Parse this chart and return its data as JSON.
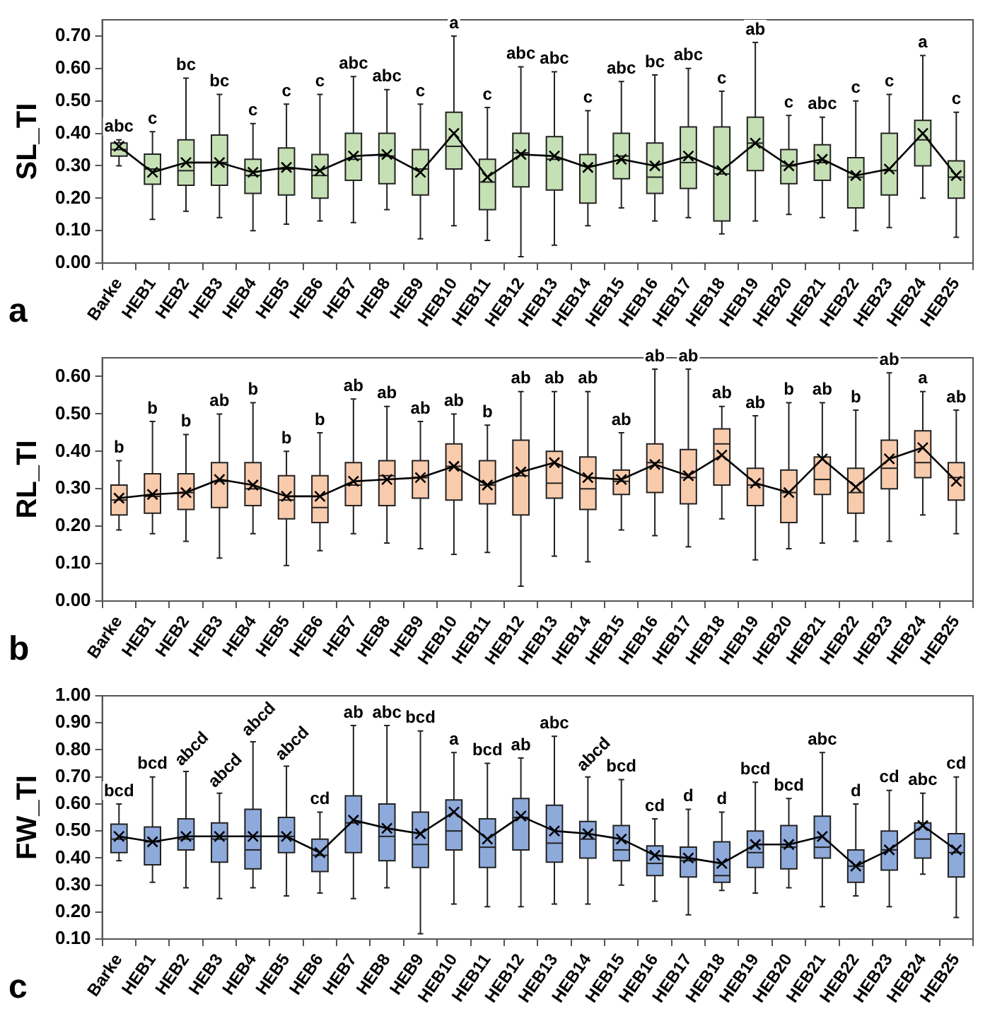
{
  "chart_data": [
    {
      "type": "box",
      "ylabel": "SL_TI",
      "categories": [
        "Barke",
        "HEB1",
        "HEB2",
        "HEB3",
        "HEB4",
        "HEB5",
        "HEB6",
        "HEB7",
        "HEB8",
        "HEB9",
        "HEB10",
        "HEB11",
        "HEB12",
        "HEB13",
        "HEB14",
        "HEB15",
        "HEB16",
        "HEB17",
        "HEB18",
        "HEB19",
        "HEB20",
        "HEB21",
        "HEB22",
        "HEB23",
        "HEB24",
        "HEB25"
      ],
      "ylim": [
        0,
        0.75
      ],
      "yticks": [
        {
          "value": 0,
          "label": "0.00"
        },
        {
          "value": 0.1,
          "label": "0.10"
        },
        {
          "value": 0.2,
          "label": "0.20"
        },
        {
          "value": 0.3,
          "label": "0.30"
        },
        {
          "value": 0.4,
          "label": "0.40"
        },
        {
          "value": 0.5,
          "label": "0.50"
        },
        {
          "value": 0.6,
          "label": "0.60"
        },
        {
          "value": 0.7,
          "label": "0.70"
        }
      ],
      "annotations": [
        "a"
      ],
      "series": [
        {
          "type": "box",
          "color": "#c5e0b4",
          "value_labels": [
            "abc",
            "c",
            "bc",
            "bc",
            "c",
            "c",
            "c",
            "abc",
            "abc",
            "c",
            "a",
            "c",
            "abc",
            "abc",
            "c",
            "abc",
            "bc",
            "abc",
            "c",
            "ab",
            "c",
            "abc",
            "c",
            "c",
            "a",
            "c"
          ],
          "boxes": [
            {
              "low": 0.3,
              "q1": 0.33,
              "median": 0.35,
              "q3": 0.37,
              "high": 0.38,
              "mean": 0.36
            },
            {
              "low": 0.135,
              "q1": 0.243,
              "median": 0.29,
              "q3": 0.336,
              "high": 0.405,
              "mean": 0.28
            },
            {
              "low": 0.16,
              "q1": 0.24,
              "median": 0.285,
              "q3": 0.38,
              "high": 0.57,
              "mean": 0.31
            },
            {
              "low": 0.14,
              "q1": 0.24,
              "median": 0.31,
              "q3": 0.395,
              "high": 0.52,
              "mean": 0.31
            },
            {
              "low": 0.1,
              "q1": 0.215,
              "median": 0.27,
              "q3": 0.32,
              "high": 0.43,
              "mean": 0.28
            },
            {
              "low": 0.12,
              "q1": 0.21,
              "median": 0.29,
              "q3": 0.355,
              "high": 0.49,
              "mean": 0.295
            },
            {
              "low": 0.13,
              "q1": 0.2,
              "median": 0.27,
              "q3": 0.335,
              "high": 0.52,
              "mean": 0.285
            },
            {
              "low": 0.125,
              "q1": 0.255,
              "median": 0.32,
              "q3": 0.4,
              "high": 0.575,
              "mean": 0.33
            },
            {
              "low": 0.165,
              "q1": 0.245,
              "median": 0.33,
              "q3": 0.4,
              "high": 0.535,
              "mean": 0.335
            },
            {
              "low": 0.075,
              "q1": 0.21,
              "median": 0.29,
              "q3": 0.35,
              "high": 0.49,
              "mean": 0.28
            },
            {
              "low": 0.115,
              "q1": 0.29,
              "median": 0.36,
              "q3": 0.465,
              "high": 0.7,
              "mean": 0.4
            },
            {
              "low": 0.07,
              "q1": 0.165,
              "median": 0.25,
              "q3": 0.32,
              "high": 0.48,
              "mean": 0.265
            },
            {
              "low": 0.02,
              "q1": 0.235,
              "median": 0.34,
              "q3": 0.4,
              "high": 0.605,
              "mean": 0.335
            },
            {
              "low": 0.055,
              "q1": 0.225,
              "median": 0.32,
              "q3": 0.39,
              "high": 0.59,
              "mean": 0.33
            },
            {
              "low": 0.115,
              "q1": 0.185,
              "median": 0.3,
              "q3": 0.335,
              "high": 0.47,
              "mean": 0.295
            },
            {
              "low": 0.17,
              "q1": 0.26,
              "median": 0.33,
              "q3": 0.4,
              "high": 0.56,
              "mean": 0.32
            },
            {
              "low": 0.13,
              "q1": 0.215,
              "median": 0.265,
              "q3": 0.37,
              "high": 0.58,
              "mean": 0.3
            },
            {
              "low": 0.14,
              "q1": 0.23,
              "median": 0.31,
              "q3": 0.42,
              "high": 0.6,
              "mean": 0.33
            },
            {
              "low": 0.09,
              "q1": 0.13,
              "median": 0.275,
              "q3": 0.42,
              "high": 0.53,
              "mean": 0.285
            },
            {
              "low": 0.13,
              "q1": 0.285,
              "median": 0.37,
              "q3": 0.45,
              "high": 0.68,
              "mean": 0.37
            },
            {
              "low": 0.15,
              "q1": 0.245,
              "median": 0.3,
              "q3": 0.35,
              "high": 0.455,
              "mean": 0.3
            },
            {
              "low": 0.14,
              "q1": 0.255,
              "median": 0.31,
              "q3": 0.365,
              "high": 0.45,
              "mean": 0.32
            },
            {
              "low": 0.1,
              "q1": 0.17,
              "median": 0.265,
              "q3": 0.325,
              "high": 0.5,
              "mean": 0.27
            },
            {
              "low": 0.11,
              "q1": 0.21,
              "median": 0.285,
              "q3": 0.4,
              "high": 0.52,
              "mean": 0.29
            },
            {
              "low": 0.2,
              "q1": 0.3,
              "median": 0.38,
              "q3": 0.44,
              "high": 0.64,
              "mean": 0.4
            },
            {
              "low": 0.08,
              "q1": 0.2,
              "median": 0.265,
              "q3": 0.315,
              "high": 0.465,
              "mean": 0.27
            }
          ]
        },
        {
          "type": "line",
          "color": "#000000",
          "values": [
            0.36,
            0.28,
            0.31,
            0.31,
            0.28,
            0.295,
            0.285,
            0.33,
            0.335,
            0.28,
            0.4,
            0.265,
            0.335,
            0.33,
            0.295,
            0.32,
            0.3,
            0.33,
            0.285,
            0.37,
            0.3,
            0.32,
            0.27,
            0.29,
            0.4,
            0.27
          ]
        }
      ]
    },
    {
      "type": "box",
      "ylabel": "RL_TI",
      "categories": [
        "Barke",
        "HEB1",
        "HEB2",
        "HEB3",
        "HEB4",
        "HEB5",
        "HEB6",
        "HEB7",
        "HEB8",
        "HEB9",
        "HEB10",
        "HEB11",
        "HEB12",
        "HEB13",
        "HEB14",
        "HEB15",
        "HEB16",
        "HEB17",
        "HEB18",
        "HEB19",
        "HEB20",
        "HEB21",
        "HEB22",
        "HEB23",
        "HEB24",
        "HEB25"
      ],
      "ylim": [
        0,
        0.65
      ],
      "yticks": [
        {
          "value": 0,
          "label": "0.00"
        },
        {
          "value": 0.1,
          "label": "0.10"
        },
        {
          "value": 0.2,
          "label": "0.20"
        },
        {
          "value": 0.3,
          "label": "0.30"
        },
        {
          "value": 0.4,
          "label": "0.40"
        },
        {
          "value": 0.5,
          "label": "0.50"
        },
        {
          "value": 0.6,
          "label": "0.60"
        }
      ],
      "annotations": [
        "b"
      ],
      "series": [
        {
          "type": "box",
          "color": "#f8cbad",
          "value_labels": [
            "b",
            "b",
            "b",
            "ab",
            "b",
            "b",
            "b",
            "ab",
            "ab",
            "ab",
            "ab",
            "b",
            "ab",
            "ab",
            "ab",
            "ab",
            "ab",
            "ab",
            "ab",
            "ab",
            "b",
            "ab",
            "b",
            "ab",
            "a",
            "ab"
          ],
          "boxes": [
            {
              "low": 0.19,
              "q1": 0.23,
              "median": 0.27,
              "q3": 0.31,
              "high": 0.375,
              "mean": 0.275
            },
            {
              "low": 0.18,
              "q1": 0.235,
              "median": 0.28,
              "q3": 0.34,
              "high": 0.48,
              "mean": 0.285
            },
            {
              "low": 0.16,
              "q1": 0.245,
              "median": 0.29,
              "q3": 0.34,
              "high": 0.445,
              "mean": 0.29
            },
            {
              "low": 0.115,
              "q1": 0.25,
              "median": 0.32,
              "q3": 0.37,
              "high": 0.5,
              "mean": 0.325
            },
            {
              "low": 0.18,
              "q1": 0.255,
              "median": 0.3,
              "q3": 0.37,
              "high": 0.53,
              "mean": 0.31
            },
            {
              "low": 0.095,
              "q1": 0.22,
              "median": 0.27,
              "q3": 0.335,
              "high": 0.4,
              "mean": 0.28
            },
            {
              "low": 0.135,
              "q1": 0.21,
              "median": 0.25,
              "q3": 0.335,
              "high": 0.45,
              "mean": 0.28
            },
            {
              "low": 0.18,
              "q1": 0.255,
              "median": 0.31,
              "q3": 0.37,
              "high": 0.54,
              "mean": 0.32
            },
            {
              "low": 0.155,
              "q1": 0.255,
              "median": 0.335,
              "q3": 0.375,
              "high": 0.52,
              "mean": 0.325
            },
            {
              "low": 0.14,
              "q1": 0.275,
              "median": 0.33,
              "q3": 0.375,
              "high": 0.48,
              "mean": 0.33
            },
            {
              "low": 0.125,
              "q1": 0.27,
              "median": 0.36,
              "q3": 0.42,
              "high": 0.5,
              "mean": 0.36
            },
            {
              "low": 0.13,
              "q1": 0.26,
              "median": 0.31,
              "q3": 0.375,
              "high": 0.47,
              "mean": 0.31
            },
            {
              "low": 0.04,
              "q1": 0.23,
              "median": 0.335,
              "q3": 0.43,
              "high": 0.56,
              "mean": 0.345
            },
            {
              "low": 0.12,
              "q1": 0.275,
              "median": 0.315,
              "q3": 0.4,
              "high": 0.56,
              "mean": 0.37
            },
            {
              "low": 0.105,
              "q1": 0.245,
              "median": 0.3,
              "q3": 0.385,
              "high": 0.56,
              "mean": 0.33
            },
            {
              "low": 0.19,
              "q1": 0.285,
              "median": 0.32,
              "q3": 0.35,
              "high": 0.45,
              "mean": 0.325
            },
            {
              "low": 0.175,
              "q1": 0.29,
              "median": 0.37,
              "q3": 0.42,
              "high": 0.62,
              "mean": 0.365
            },
            {
              "low": 0.145,
              "q1": 0.26,
              "median": 0.33,
              "q3": 0.405,
              "high": 0.62,
              "mean": 0.335
            },
            {
              "low": 0.22,
              "q1": 0.31,
              "median": 0.42,
              "q3": 0.46,
              "high": 0.52,
              "mean": 0.39
            },
            {
              "low": 0.11,
              "q1": 0.255,
              "median": 0.31,
              "q3": 0.355,
              "high": 0.495,
              "mean": 0.315
            },
            {
              "low": 0.14,
              "q1": 0.21,
              "median": 0.29,
              "q3": 0.35,
              "high": 0.53,
              "mean": 0.29
            },
            {
              "low": 0.155,
              "q1": 0.285,
              "median": 0.325,
              "q3": 0.385,
              "high": 0.53,
              "mean": 0.38
            },
            {
              "low": 0.16,
              "q1": 0.235,
              "median": 0.29,
              "q3": 0.355,
              "high": 0.51,
              "mean": 0.305
            },
            {
              "low": 0.16,
              "q1": 0.3,
              "median": 0.355,
              "q3": 0.43,
              "high": 0.61,
              "mean": 0.38
            },
            {
              "low": 0.23,
              "q1": 0.33,
              "median": 0.37,
              "q3": 0.455,
              "high": 0.56,
              "mean": 0.41
            },
            {
              "low": 0.18,
              "q1": 0.27,
              "median": 0.33,
              "q3": 0.37,
              "high": 0.51,
              "mean": 0.32
            }
          ]
        },
        {
          "type": "line",
          "color": "#000000",
          "values": [
            0.275,
            0.285,
            0.29,
            0.325,
            0.31,
            0.28,
            0.28,
            0.32,
            0.325,
            0.33,
            0.36,
            0.31,
            0.345,
            0.37,
            0.33,
            0.325,
            0.365,
            0.335,
            0.39,
            0.315,
            0.29,
            0.38,
            0.305,
            0.38,
            0.41,
            0.32
          ]
        }
      ]
    },
    {
      "type": "box",
      "ylabel": "FW_TI",
      "categories": [
        "Barke",
        "HEB1",
        "HEB2",
        "HEB3",
        "HEB4",
        "HEB5",
        "HEB6",
        "HEB7",
        "HEB8",
        "HEB9",
        "HEB10",
        "HEB11",
        "HEB12",
        "HEB13",
        "HEB14",
        "HEB15",
        "HEB16",
        "HEB17",
        "HEB18",
        "HEB19",
        "HEB20",
        "HEB21",
        "HEB22",
        "HEB23",
        "HEB24",
        "HEB25"
      ],
      "ylim": [
        0.1,
        1
      ],
      "yticks": [
        {
          "value": 0.1,
          "label": "0.10"
        },
        {
          "value": 0.2,
          "label": "0.20"
        },
        {
          "value": 0.3,
          "label": "0.30"
        },
        {
          "value": 0.4,
          "label": "0.40"
        },
        {
          "value": 0.5,
          "label": "0.50"
        },
        {
          "value": 0.6,
          "label": "0.60"
        },
        {
          "value": 0.7,
          "label": "0.70"
        },
        {
          "value": 0.8,
          "label": "0.80"
        },
        {
          "value": 0.9,
          "label": "0.90"
        },
        {
          "value": 1,
          "label": "1.00"
        }
      ],
      "annotations": [
        "c"
      ],
      "series": [
        {
          "type": "box",
          "color": "#8eaadb",
          "value_labels": [
            "bcd",
            "bcd",
            "abcd",
            "abcd",
            "abcd",
            "abcd",
            "cd",
            "ab",
            "abc",
            "bcd",
            "a",
            "bcd",
            "ab",
            "abc",
            "abcd",
            "bcd",
            "cd",
            "d",
            "d",
            "bcd",
            "bcd",
            "abc",
            "d",
            "cd",
            "abc",
            "cd"
          ],
          "boxes": [
            {
              "low": 0.39,
              "q1": 0.42,
              "median": 0.47,
              "q3": 0.525,
              "high": 0.6,
              "mean": 0.48
            },
            {
              "low": 0.31,
              "q1": 0.375,
              "median": 0.46,
              "q3": 0.515,
              "high": 0.7,
              "mean": 0.46
            },
            {
              "low": 0.29,
              "q1": 0.43,
              "median": 0.47,
              "q3": 0.545,
              "high": 0.72,
              "mean": 0.48
            },
            {
              "low": 0.25,
              "q1": 0.385,
              "median": 0.47,
              "q3": 0.53,
              "high": 0.64,
              "mean": 0.48
            },
            {
              "low": 0.29,
              "q1": 0.36,
              "median": 0.43,
              "q3": 0.58,
              "high": 0.83,
              "mean": 0.48
            },
            {
              "low": 0.26,
              "q1": 0.42,
              "median": 0.48,
              "q3": 0.55,
              "high": 0.74,
              "mean": 0.48
            },
            {
              "low": 0.27,
              "q1": 0.35,
              "median": 0.41,
              "q3": 0.47,
              "high": 0.57,
              "mean": 0.42
            },
            {
              "low": 0.25,
              "q1": 0.42,
              "median": 0.53,
              "q3": 0.63,
              "high": 0.89,
              "mean": 0.54
            },
            {
              "low": 0.29,
              "q1": 0.39,
              "median": 0.48,
              "q3": 0.6,
              "high": 0.89,
              "mean": 0.51
            },
            {
              "low": 0.12,
              "q1": 0.365,
              "median": 0.45,
              "q3": 0.57,
              "high": 0.87,
              "mean": 0.49
            },
            {
              "low": 0.23,
              "q1": 0.43,
              "median": 0.5,
              "q3": 0.615,
              "high": 0.79,
              "mean": 0.57
            },
            {
              "low": 0.22,
              "q1": 0.365,
              "median": 0.44,
              "q3": 0.545,
              "high": 0.75,
              "mean": 0.47
            },
            {
              "low": 0.22,
              "q1": 0.43,
              "median": 0.55,
              "q3": 0.62,
              "high": 0.77,
              "mean": 0.555
            },
            {
              "low": 0.23,
              "q1": 0.385,
              "median": 0.455,
              "q3": 0.595,
              "high": 0.85,
              "mean": 0.5
            },
            {
              "low": 0.23,
              "q1": 0.4,
              "median": 0.47,
              "q3": 0.535,
              "high": 0.7,
              "mean": 0.49
            },
            {
              "low": 0.3,
              "q1": 0.39,
              "median": 0.43,
              "q3": 0.52,
              "high": 0.69,
              "mean": 0.47
            },
            {
              "low": 0.24,
              "q1": 0.335,
              "median": 0.38,
              "q3": 0.445,
              "high": 0.545,
              "mean": 0.41
            },
            {
              "low": 0.19,
              "q1": 0.33,
              "median": 0.39,
              "q3": 0.44,
              "high": 0.58,
              "mean": 0.4
            },
            {
              "low": 0.28,
              "q1": 0.31,
              "median": 0.335,
              "q3": 0.46,
              "high": 0.57,
              "mean": 0.38
            },
            {
              "low": 0.27,
              "q1": 0.365,
              "median": 0.42,
              "q3": 0.5,
              "high": 0.68,
              "mean": 0.45
            },
            {
              "low": 0.29,
              "q1": 0.36,
              "median": 0.44,
              "q3": 0.52,
              "high": 0.62,
              "mean": 0.45
            },
            {
              "low": 0.22,
              "q1": 0.4,
              "median": 0.44,
              "q3": 0.555,
              "high": 0.79,
              "mean": 0.48
            },
            {
              "low": 0.26,
              "q1": 0.31,
              "median": 0.37,
              "q3": 0.43,
              "high": 0.6,
              "mean": 0.37
            },
            {
              "low": 0.22,
              "q1": 0.355,
              "median": 0.43,
              "q3": 0.5,
              "high": 0.65,
              "mean": 0.43
            },
            {
              "low": 0.34,
              "q1": 0.4,
              "median": 0.47,
              "q3": 0.53,
              "high": 0.64,
              "mean": 0.52
            },
            {
              "low": 0.18,
              "q1": 0.33,
              "median": 0.42,
              "q3": 0.49,
              "high": 0.7,
              "mean": 0.43
            }
          ]
        },
        {
          "type": "line",
          "color": "#000000",
          "values": [
            0.48,
            0.46,
            0.48,
            0.48,
            0.48,
            0.48,
            0.42,
            0.54,
            0.51,
            0.49,
            0.57,
            0.47,
            0.555,
            0.5,
            0.49,
            0.47,
            0.41,
            0.4,
            0.38,
            0.45,
            0.45,
            0.48,
            0.37,
            0.43,
            0.52,
            0.43
          ]
        }
      ]
    }
  ]
}
